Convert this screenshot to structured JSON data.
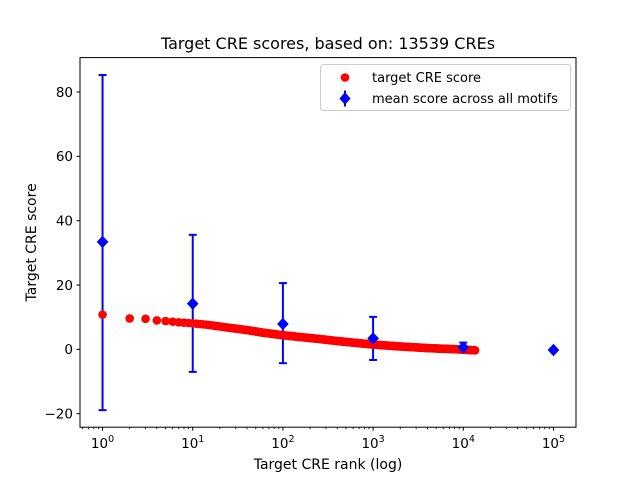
{
  "figure": {
    "background": "#ffffff",
    "text_color": "#000000",
    "spine_color": "#000000"
  },
  "chart_data": {
    "type": "scatter",
    "title": "Target CRE scores, based on: 13539 CREs",
    "xlabel": "Target CRE rank (log)",
    "ylabel": "Target CRE score",
    "x_scale": "log",
    "grid": false,
    "n_cres": 13539,
    "x_axis": {
      "tick_values": [
        1,
        10,
        100,
        1000,
        10000,
        100000
      ],
      "tick_base": "10",
      "tick_exponents": [
        0,
        1,
        2,
        3,
        4,
        5
      ],
      "lim_log10": [
        -0.25,
        5.25
      ],
      "minor_ticks_per_decade": [
        2,
        3,
        4,
        5,
        6,
        7,
        8,
        9
      ]
    },
    "y_axis": {
      "tick_values": [
        -20,
        0,
        20,
        40,
        60,
        80
      ],
      "tick_labels": [
        "−20",
        "0",
        "20",
        "40",
        "60",
        "80"
      ],
      "lim": [
        -24.2,
        90.7
      ]
    },
    "series": [
      {
        "name": "target CRE score",
        "color": "#ff0000",
        "marker": "circle",
        "marker_radius_px": 4.3,
        "rank_start": 1,
        "rank_end": 13539,
        "anchors_rank_score": [
          [
            1,
            10.8
          ],
          [
            2,
            9.6
          ],
          [
            3,
            9.5
          ],
          [
            4,
            9.0
          ],
          [
            5,
            8.8
          ],
          [
            6,
            8.6
          ],
          [
            7,
            8.4
          ],
          [
            8,
            8.3
          ],
          [
            10,
            8.1
          ],
          [
            15,
            7.6
          ],
          [
            24,
            6.8
          ],
          [
            40,
            6.0
          ],
          [
            60,
            5.2
          ],
          [
            100,
            4.4
          ],
          [
            160,
            3.8
          ],
          [
            260,
            3.2
          ],
          [
            400,
            2.6
          ],
          [
            600,
            2.1
          ],
          [
            1000,
            1.5
          ],
          [
            2000,
            0.9
          ],
          [
            4000,
            0.4
          ],
          [
            8000,
            0.05
          ],
          [
            13539,
            -0.3
          ]
        ]
      },
      {
        "name": "mean score across all motifs",
        "color": "#0000ff",
        "marker": "diamond",
        "points": [
          {
            "rank": 1,
            "mean": 33.4,
            "low": -18.9,
            "high": 85.3
          },
          {
            "rank": 10,
            "mean": 14.2,
            "low": -7.0,
            "high": 35.6
          },
          {
            "rank": 100,
            "mean": 7.9,
            "low": -4.3,
            "high": 20.6
          },
          {
            "rank": 1000,
            "mean": 3.4,
            "low": -3.3,
            "high": 10.1
          },
          {
            "rank": 10000,
            "mean": 0.6,
            "low": -0.9,
            "high": 2.1
          },
          {
            "rank": 100000,
            "mean": -0.2,
            "low": -0.5,
            "high": 0.1
          }
        ]
      }
    ],
    "legend": {
      "position": "upper right",
      "entries": [
        "target CRE score",
        "mean score across all motifs"
      ]
    }
  }
}
